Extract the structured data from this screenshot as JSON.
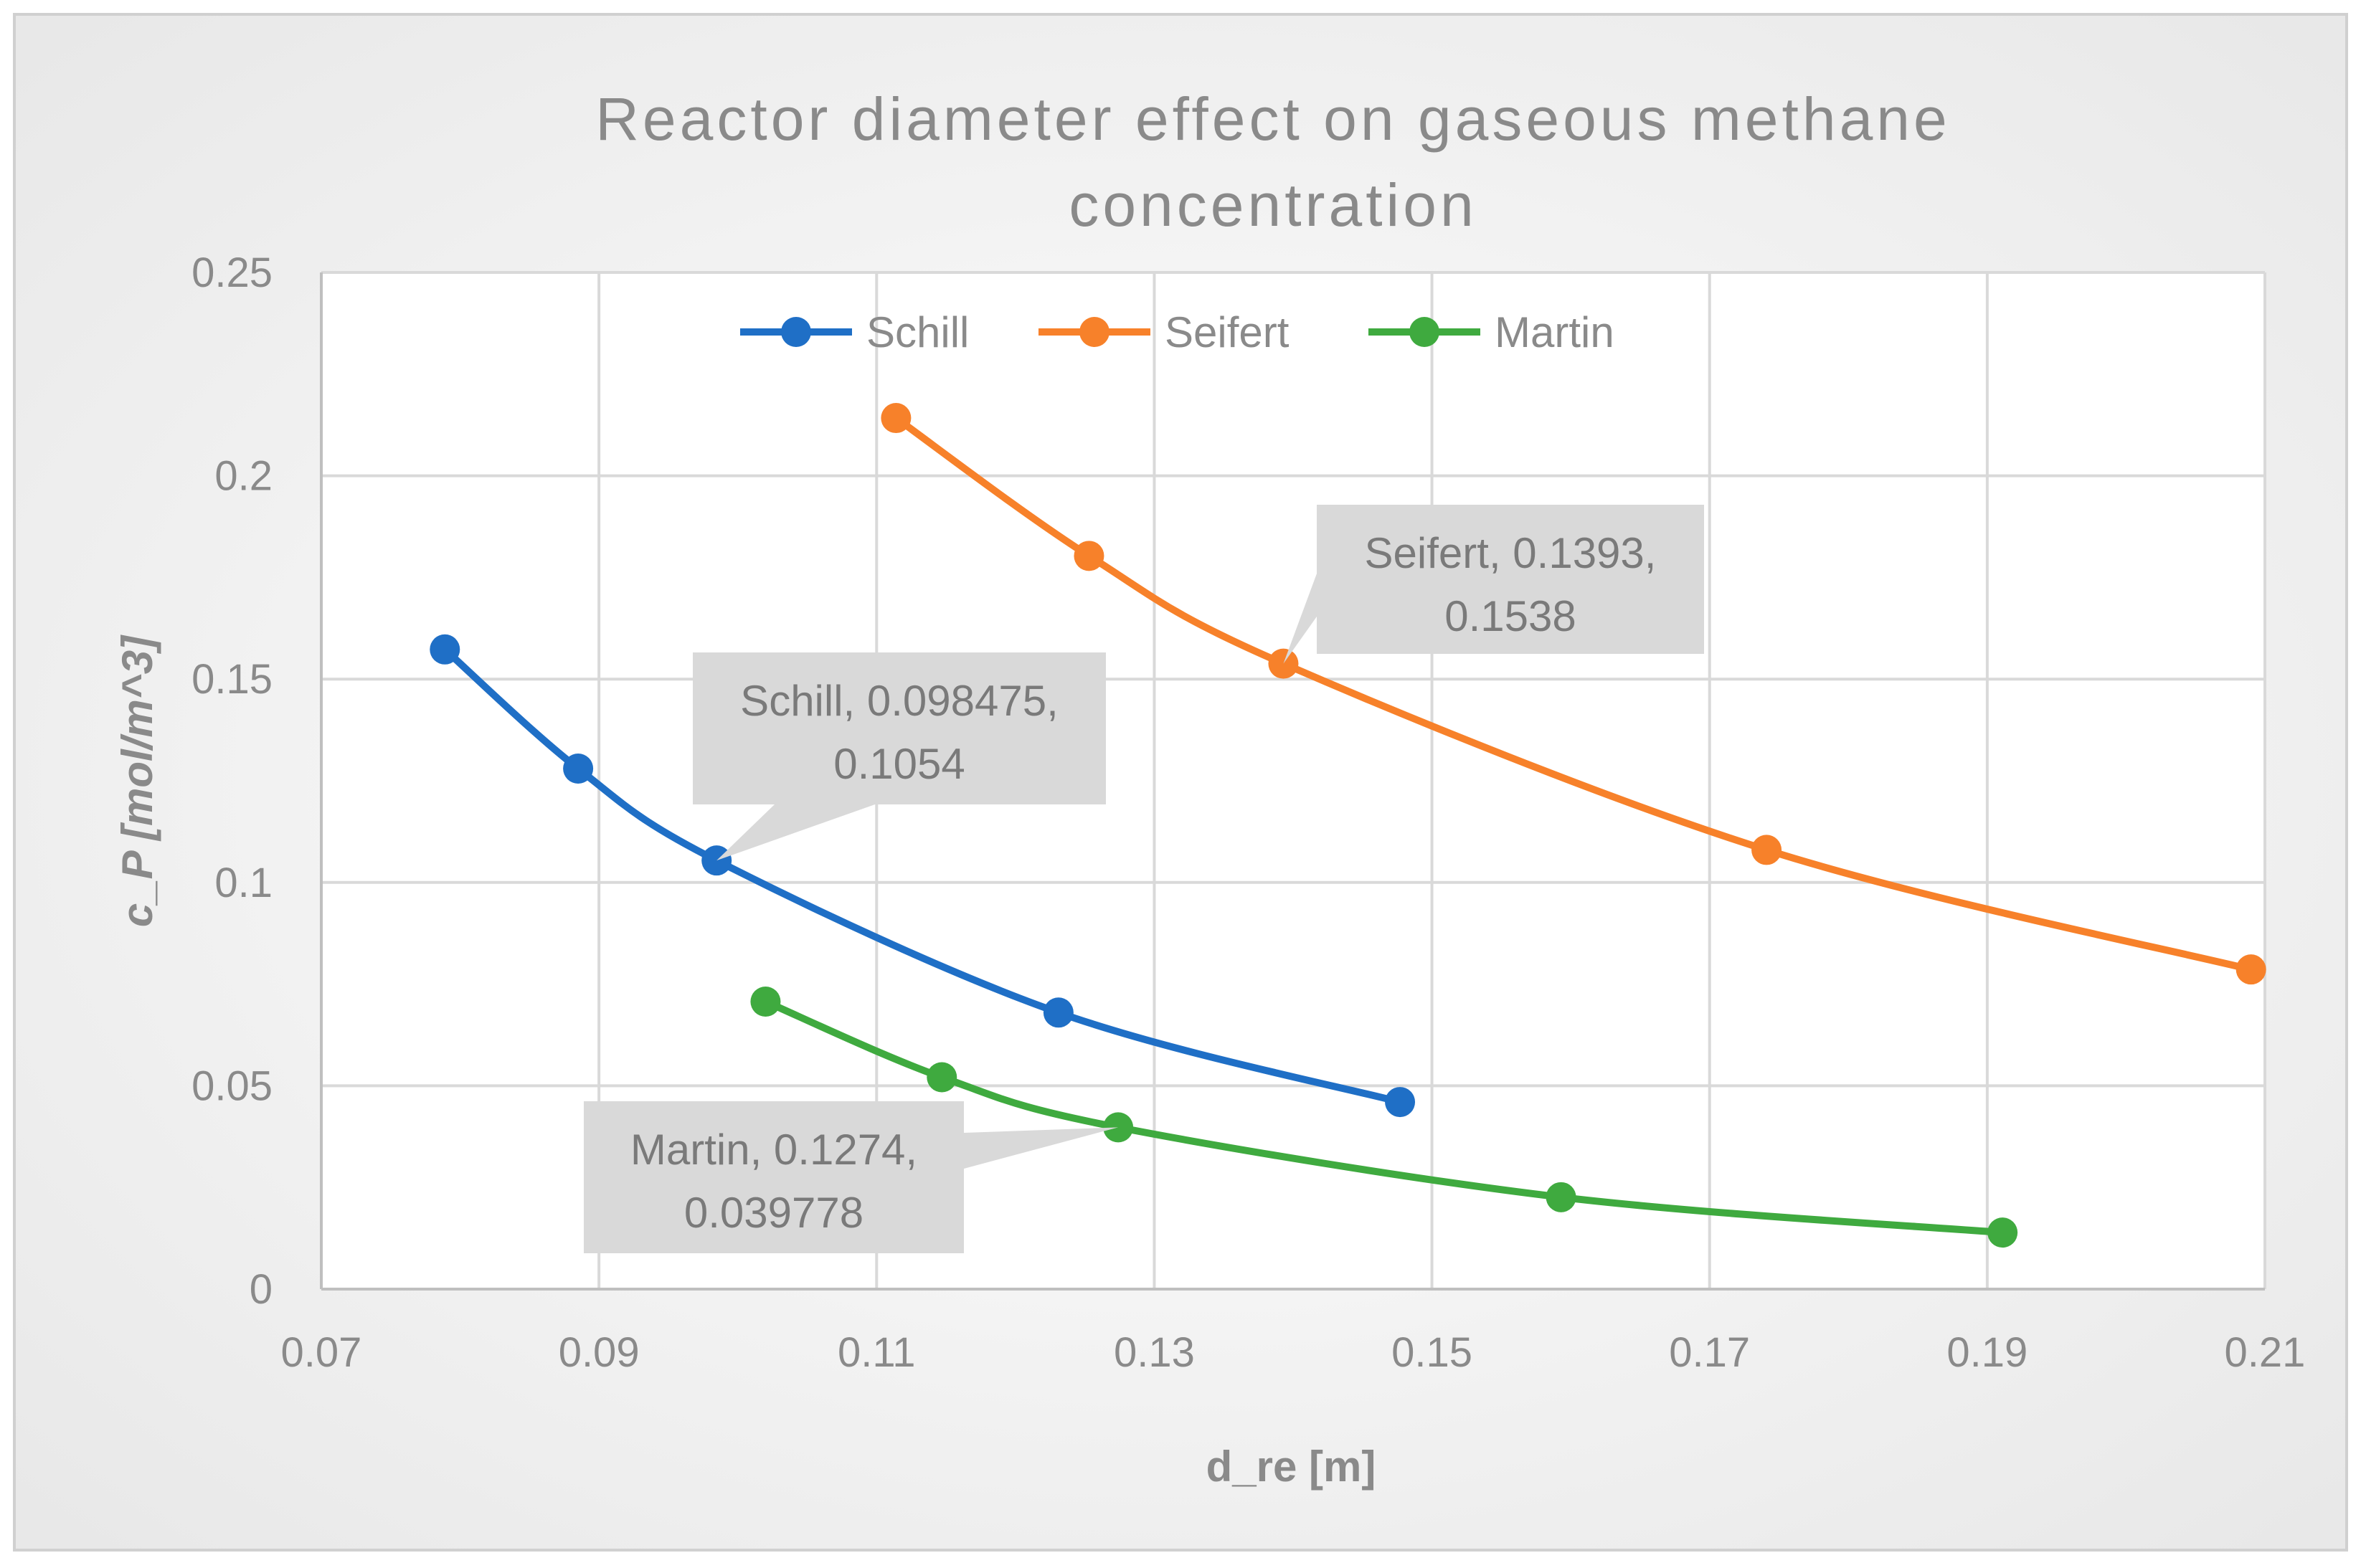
{
  "chart_data": {
    "type": "line",
    "title_lines": [
      "Reactor diameter effect on gaseous methane",
      "concentration"
    ],
    "xlabel": "d_re [m]",
    "ylabel": "c_P [mol/m^3]",
    "xlim": [
      0.07,
      0.21
    ],
    "ylim": [
      0,
      0.25
    ],
    "x_ticks": [
      0.07,
      0.09,
      0.11,
      0.13,
      0.15,
      0.17,
      0.19,
      0.21
    ],
    "x_tick_labels": [
      "0.07",
      "0.09",
      "0.11",
      "0.13",
      "0.15",
      "0.17",
      "0.19",
      "0.21"
    ],
    "y_ticks": [
      0,
      0.05,
      0.1,
      0.15,
      0.2,
      0.25
    ],
    "y_tick_labels": [
      "0",
      "0.05",
      "0.1",
      "0.15",
      "0.2",
      "0.25"
    ],
    "grid": true,
    "legend_position": "top",
    "series": [
      {
        "name": "Schill",
        "color": "#1f6fc6",
        "points": [
          [
            0.0789,
            0.1573
          ],
          [
            0.0885,
            0.128
          ],
          [
            0.098475,
            0.1054
          ],
          [
            0.1231,
            0.068
          ],
          [
            0.1477,
            0.046
          ]
        ]
      },
      {
        "name": "Seifert",
        "color": "#f7812a",
        "points": [
          [
            0.1114,
            0.2142
          ],
          [
            0.1253,
            0.1803
          ],
          [
            0.1393,
            0.1538
          ],
          [
            0.1741,
            0.108
          ],
          [
            0.209,
            0.0786
          ]
        ]
      },
      {
        "name": "Martin",
        "color": "#3faa3f",
        "points": [
          [
            0.102,
            0.0707
          ],
          [
            0.1147,
            0.0521
          ],
          [
            0.1274,
            0.039778
          ],
          [
            0.1593,
            0.0226
          ],
          [
            0.1911,
            0.0139
          ]
        ]
      }
    ],
    "annotations": [
      {
        "series": "Schill",
        "x": 0.098475,
        "y": 0.1054,
        "lines": [
          "Schill, 0.098475,",
          "0.1054"
        ]
      },
      {
        "series": "Seifert",
        "x": 0.1393,
        "y": 0.1538,
        "lines": [
          "Seifert, 0.1393,",
          "0.1538"
        ]
      },
      {
        "series": "Martin",
        "x": 0.1274,
        "y": 0.039778,
        "lines": [
          "Martin, 0.1274,",
          "0.039778"
        ]
      }
    ]
  }
}
